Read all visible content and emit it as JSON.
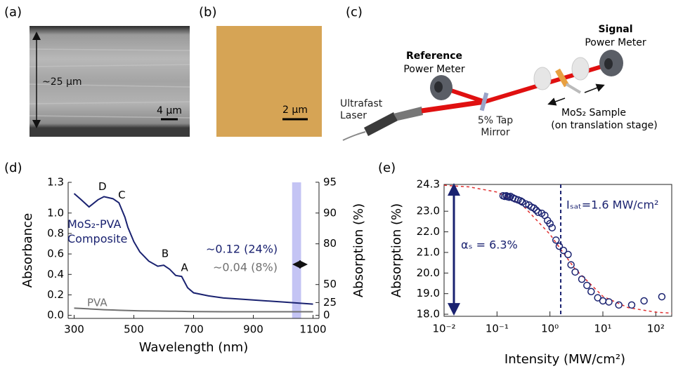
{
  "panels": {
    "a": {
      "label": "(a)",
      "thickness": "~25 μm",
      "scale_bar": "4 μm"
    },
    "b": {
      "label": "(b)",
      "scale_bar": "2 μm"
    },
    "c": {
      "label": "(c)",
      "signal_title": "Signal",
      "signal_sub": "Power Meter",
      "reference_title": "Reference",
      "reference_sub": "Power Meter",
      "laser": "Ultrafast Laser",
      "mirror": "5% Tap Mirror",
      "sample": "MoS₂ Sample",
      "stage": "(on translation stage)"
    }
  },
  "chart_data": [
    {
      "type": "line",
      "panel_label": "(d)",
      "xlabel": "Wavelength (nm)",
      "ylabel": "Absorbance",
      "y2label": "Absorption (%)",
      "x": [
        300,
        320,
        350,
        380,
        400,
        430,
        450,
        470,
        480,
        500,
        520,
        550,
        580,
        600,
        620,
        640,
        660,
        680,
        700,
        750,
        800,
        900,
        1000,
        1100
      ],
      "series": [
        {
          "name": "MoS₂-PVA Composite",
          "color": "#1a2270",
          "values": [
            1.19,
            1.14,
            1.06,
            1.13,
            1.16,
            1.14,
            1.1,
            0.96,
            0.86,
            0.72,
            0.62,
            0.53,
            0.48,
            0.49,
            0.45,
            0.39,
            0.38,
            0.27,
            0.22,
            0.19,
            0.17,
            0.15,
            0.13,
            0.11
          ]
        },
        {
          "name": "PVA",
          "color": "#707070",
          "values": [
            0.07,
            0.068,
            0.063,
            0.058,
            0.055,
            0.052,
            0.05,
            0.048,
            0.047,
            0.045,
            0.044,
            0.043,
            0.042,
            0.041,
            0.04,
            0.04,
            0.039,
            0.038,
            0.037,
            0.036,
            0.035,
            0.035,
            0.035,
            0.035
          ]
        }
      ],
      "xlim": [
        280,
        1120
      ],
      "xticks": [
        300,
        500,
        700,
        900,
        1100
      ],
      "ylim": [
        -0.03,
        1.3
      ],
      "yticks": [
        {
          "value": 0,
          "label": "0.0"
        },
        0.2,
        0.4,
        0.6,
        0.8,
        {
          "value": 1,
          "label": "1.0"
        },
        1.3
      ],
      "y2lim": [
        -7,
        95
      ],
      "y2ticks": [
        0,
        25,
        50,
        80,
        90,
        95
      ],
      "y2scale": "absorption-percent",
      "peaks": [
        {
          "label": "D",
          "x": 390
        },
        {
          "label": "C",
          "x": 455
        },
        {
          "label": "B",
          "x": 600
        },
        {
          "label": "A",
          "x": 665
        }
      ],
      "highlight_x": [
        1030,
        1060
      ],
      "highlight_color": "#c4c4f4",
      "annotations": [
        "∼0.12 (24%)",
        "∼0.04 (8%)"
      ]
    },
    {
      "type": "scatter",
      "panel_label": "(e)",
      "xlabel": "Intensity (MW/cm²)",
      "ylabel": "Absorption (%)",
      "xscale": "log",
      "x": [
        0.13,
        0.14,
        0.15,
        0.16,
        0.17,
        0.18,
        0.2,
        0.22,
        0.25,
        0.28,
        0.3,
        0.35,
        0.4,
        0.45,
        0.5,
        0.55,
        0.6,
        0.7,
        0.8,
        0.9,
        1,
        1.1,
        1.3,
        1.5,
        1.8,
        2.2,
        2.5,
        3,
        4,
        5,
        6,
        8,
        10,
        13,
        20,
        35,
        60,
        130
      ],
      "series": [
        {
          "color": "#1a2270",
          "values": [
            23.75,
            23.72,
            23.75,
            23.7,
            23.68,
            23.72,
            23.65,
            23.6,
            23.55,
            23.5,
            23.45,
            23.35,
            23.3,
            23.2,
            23.15,
            23.05,
            22.95,
            22.9,
            22.8,
            22.55,
            22.4,
            22.2,
            21.6,
            21.3,
            21.1,
            20.9,
            20.4,
            20.05,
            19.7,
            19.4,
            19.1,
            18.8,
            18.65,
            18.6,
            18.45,
            18.45,
            18.65,
            18.85
          ]
        }
      ],
      "fit": {
        "color": "#e03030",
        "x": [
          0.01,
          0.03,
          0.1,
          0.3,
          1,
          1.6,
          3,
          10,
          30,
          100,
          200
        ],
        "values": [
          24.26,
          24.18,
          23.93,
          23.31,
          21.88,
          21.15,
          20.19,
          18.87,
          18.32,
          18.1,
          18.05
        ]
      },
      "xlim": [
        0.01,
        200
      ],
      "xticks": [
        {
          "value": 0.01,
          "label": "10⁻²"
        },
        {
          "value": 0.1,
          "label": "10⁻¹"
        },
        {
          "value": 1,
          "label": "10⁰"
        },
        {
          "value": 10,
          "label": "10¹"
        },
        {
          "value": 100,
          "label": "10²"
        }
      ],
      "ylim": [
        17.9,
        24.3
      ],
      "yticks": [
        {
          "value": 18,
          "label": "18.0"
        },
        {
          "value": 19,
          "label": "19.0"
        },
        {
          "value": 20,
          "label": "20.0"
        },
        {
          "value": 21,
          "label": "21.0"
        },
        {
          "value": 22,
          "label": "22.0"
        },
        {
          "value": 23,
          "label": "23.0"
        },
        24.3
      ],
      "vline_x": 1.6,
      "annotations": [
        "Iₛₐₜ=1.6 MW/cm²",
        "αₛ = 6.3%"
      ]
    }
  ]
}
